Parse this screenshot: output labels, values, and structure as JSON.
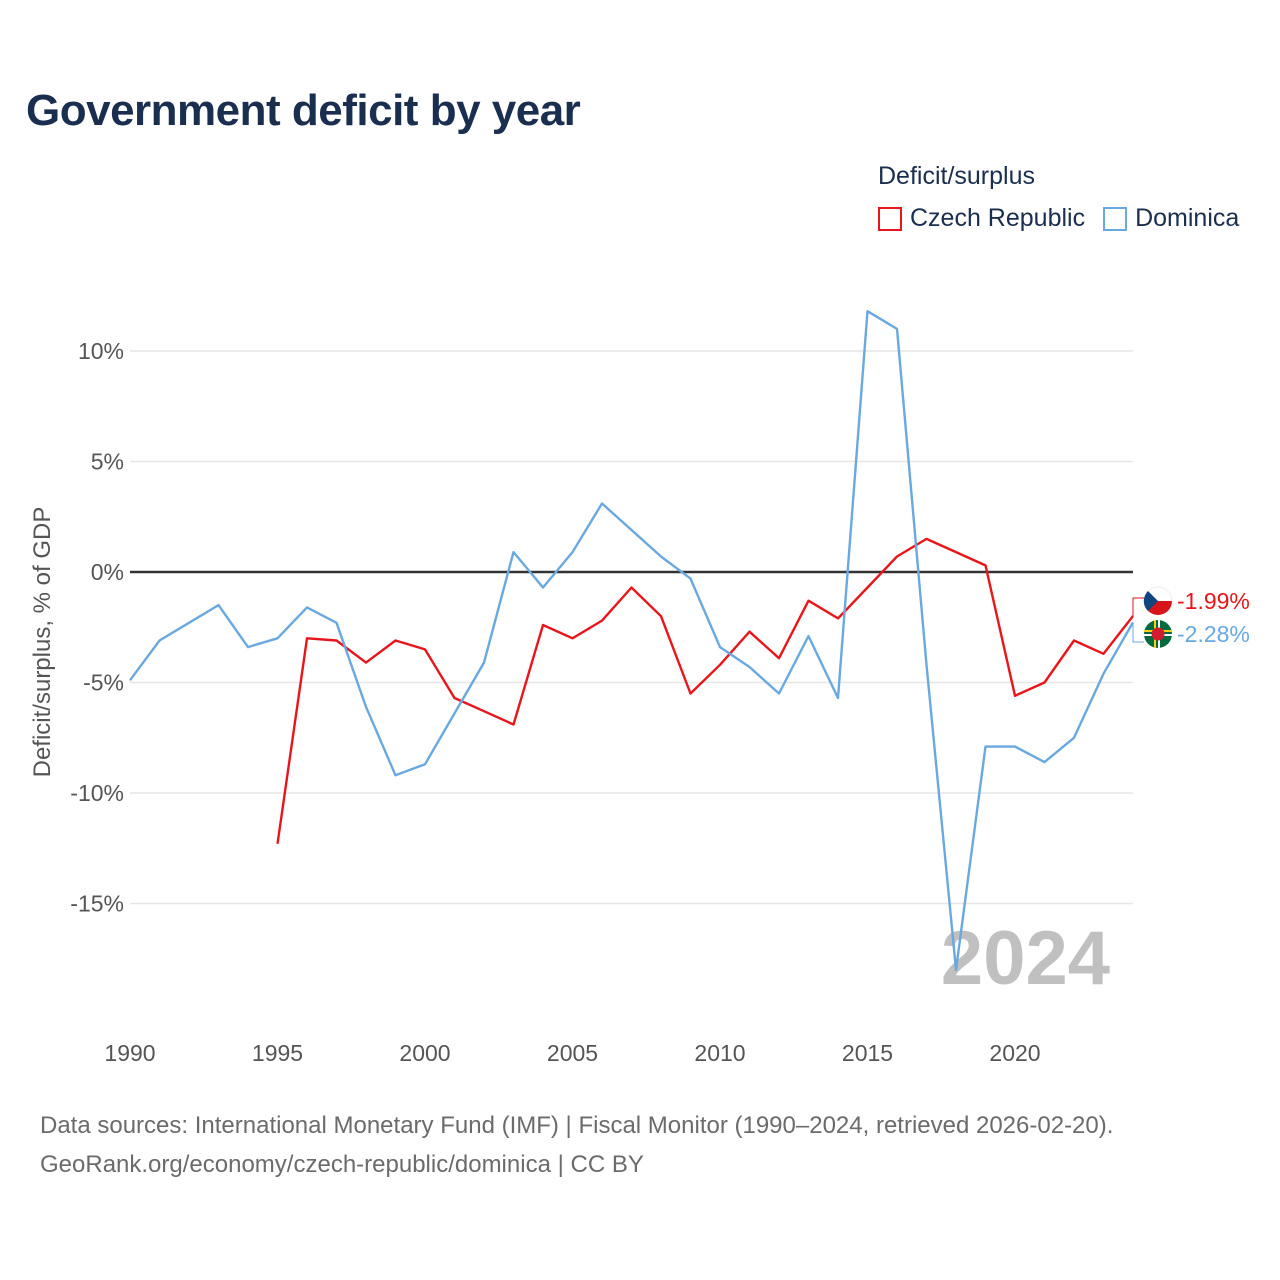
{
  "title": "Government deficit by year",
  "legend": {
    "title": "Deficit/surplus",
    "items": [
      {
        "label": "Czech Republic",
        "color": "#e8161b"
      },
      {
        "label": "Dominica",
        "color": "#6aa8e0"
      }
    ]
  },
  "year_watermark": "2024",
  "source": {
    "line1": "Data sources: International Monetary Fund (IMF) | Fiscal Monitor (1990–2024, retrieved 2026-02-20).",
    "line2": "GeoRank.org/economy/czech-republic/dominica | CC BY"
  },
  "chart_data": {
    "type": "line",
    "title": "Government deficit by year",
    "xlabel": "",
    "ylabel": "Deficit/surplus, % of GDP",
    "xlim": [
      1990,
      2024
    ],
    "ylim": [
      -20,
      13
    ],
    "x_ticks": [
      "1990",
      "1995",
      "2000",
      "2005",
      "2010",
      "2015",
      "2020"
    ],
    "y_ticks": [
      {
        "value": 10,
        "label": "10%"
      },
      {
        "value": 5,
        "label": "5%"
      },
      {
        "value": 0,
        "label": "0%"
      },
      {
        "value": -5,
        "label": "-5%"
      },
      {
        "value": -10,
        "label": "-10%"
      },
      {
        "value": -15,
        "label": "-15%"
      }
    ],
    "grid": true,
    "legend_position": "top-right",
    "series": [
      {
        "name": "Czech Republic",
        "color": "#e8161b",
        "end_label": "-1.99%",
        "points": [
          [
            1995,
            -12.3
          ],
          [
            1996,
            -3.0
          ],
          [
            1997,
            -3.1
          ],
          [
            1998,
            -4.1
          ],
          [
            1999,
            -3.1
          ],
          [
            2000,
            -3.5
          ],
          [
            2001,
            -5.7
          ],
          [
            2002,
            -6.3
          ],
          [
            2003,
            -6.9
          ],
          [
            2004,
            -2.4
          ],
          [
            2005,
            -3.0
          ],
          [
            2006,
            -2.2
          ],
          [
            2007,
            -0.7
          ],
          [
            2008,
            -2.0
          ],
          [
            2009,
            -5.5
          ],
          [
            2010,
            -4.2
          ],
          [
            2011,
            -2.7
          ],
          [
            2012,
            -3.9
          ],
          [
            2013,
            -1.3
          ],
          [
            2014,
            -2.1
          ],
          [
            2015,
            -0.7
          ],
          [
            2016,
            0.7
          ],
          [
            2017,
            1.5
          ],
          [
            2018,
            0.9
          ],
          [
            2019,
            0.3
          ],
          [
            2020,
            -5.6
          ],
          [
            2021,
            -5.0
          ],
          [
            2022,
            -3.1
          ],
          [
            2023,
            -3.7
          ],
          [
            2024,
            -1.99
          ]
        ]
      },
      {
        "name": "Dominica",
        "color": "#6aa8e0",
        "end_label": "-2.28%",
        "points": [
          [
            1990,
            -4.9
          ],
          [
            1991,
            -3.1
          ],
          [
            1992,
            -2.3
          ],
          [
            1993,
            -1.5
          ],
          [
            1994,
            -3.4
          ],
          [
            1995,
            -3.0
          ],
          [
            1996,
            -1.6
          ],
          [
            1997,
            -2.3
          ],
          [
            1998,
            -6.1
          ],
          [
            1999,
            -9.2
          ],
          [
            2000,
            -8.7
          ],
          [
            2001,
            -6.4
          ],
          [
            2002,
            -4.1
          ],
          [
            2003,
            0.9
          ],
          [
            2004,
            -0.7
          ],
          [
            2005,
            0.9
          ],
          [
            2006,
            3.1
          ],
          [
            2007,
            1.9
          ],
          [
            2008,
            0.7
          ],
          [
            2009,
            -0.3
          ],
          [
            2010,
            -3.4
          ],
          [
            2011,
            -4.3
          ],
          [
            2012,
            -5.5
          ],
          [
            2013,
            -2.9
          ],
          [
            2014,
            -5.7
          ],
          [
            2015,
            11.8
          ],
          [
            2016,
            11.0
          ],
          [
            2017,
            -4.2
          ],
          [
            2018,
            -18.0
          ],
          [
            2019,
            -7.9
          ],
          [
            2020,
            -7.9
          ],
          [
            2021,
            -8.6
          ],
          [
            2022,
            -7.5
          ],
          [
            2023,
            -4.6
          ],
          [
            2024,
            -2.28
          ]
        ]
      }
    ]
  }
}
